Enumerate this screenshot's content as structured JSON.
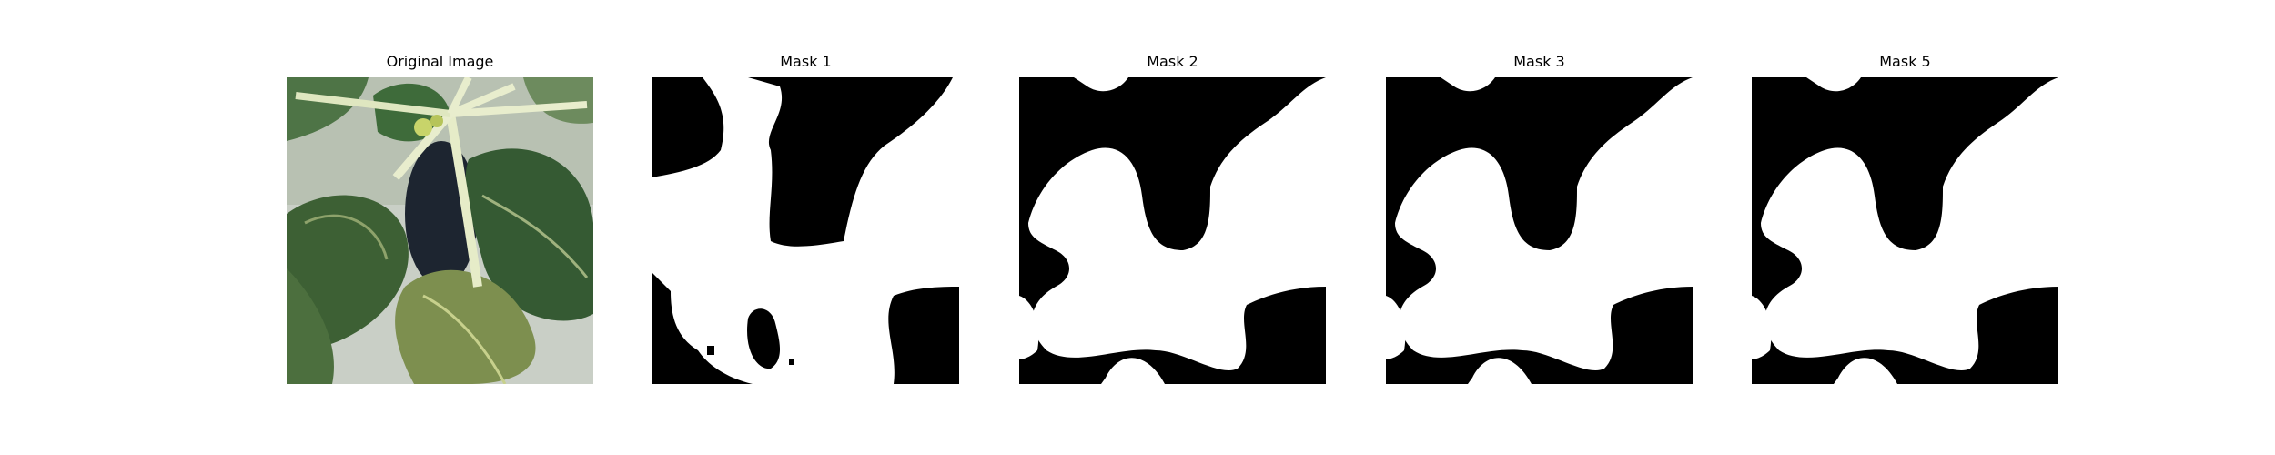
{
  "figure": {
    "panels": [
      {
        "title": "Original Image",
        "kind": "photo",
        "subject": "green plant leaves with pale flower stems"
      },
      {
        "title": "Mask 1",
        "kind": "binary-mask"
      },
      {
        "title": "Mask 2",
        "kind": "binary-mask"
      },
      {
        "title": "Mask 3",
        "kind": "binary-mask"
      },
      {
        "title": "Mask 5",
        "kind": "binary-mask"
      }
    ]
  },
  "colors": {
    "background": "#ffffff",
    "mask_foreground": "#ffffff",
    "mask_background": "#000000",
    "leaf_dark": "#3f5f3a",
    "leaf_mid": "#5f7f4f",
    "leaf_light": "#9caf7a",
    "stem": "#e6ecc8"
  }
}
